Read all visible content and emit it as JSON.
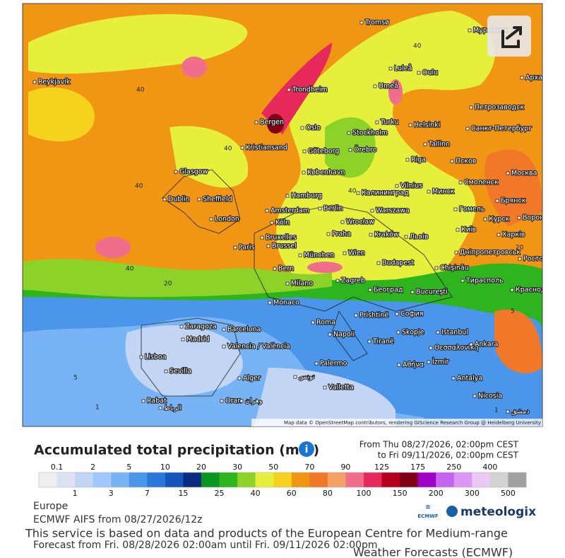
{
  "map": {
    "attribution": "Map data © OpenStreetMap contributors, rendering GIScience Research Group @ Heidelberg University",
    "cities": [
      "Reykjavík",
      "Tromsø",
      "Мурманск",
      "Luleå",
      "Oulu",
      "Архангельск",
      "Trondheim",
      "Umeå",
      "Петрозаводск",
      "Bergen",
      "Oslo",
      "Turku",
      "Helsinki",
      "Санкт-Петербург",
      "Stockholm",
      "Kristiansand",
      "Göteborg",
      "Örebro",
      "Tallinn",
      "Псков",
      "Glasgow",
      "København",
      "Riga",
      "Москва",
      "Смоленск",
      "Vilnius",
      "Минск",
      "Hamburg",
      "Калининград",
      "Dublin",
      "Sheffield",
      "Брянск",
      "Berlin",
      "Amsterdam",
      "Гомель",
      "Warszawa",
      "London",
      "Курск",
      "Воронеж",
      "Köln",
      "Wrocław",
      "Київ",
      "Kraków",
      "Львів",
      "Харків",
      "Praha",
      "Bruxelles",
      "Brussel",
      "Paris",
      "Дніпропетровськ",
      "Ростов",
      "München",
      "Wien",
      "Chişinău",
      "Bern",
      "Budapest",
      "Тирасполь",
      "Milano",
      "Zagreb",
      "Београд",
      "Bucureşti",
      "Краснодар",
      "Monaco",
      "Prishtinë",
      "София",
      "Roma",
      "Skopje",
      "Istanbul",
      "Zaragoza",
      "Barcelona",
      "Napoli",
      "Madrid",
      "Valencia / València",
      "Tiranë",
      "Θεσσαλονίκη",
      "Ankara",
      "Lisboa",
      "Sevilla",
      "İzmir",
      "Αθήνα",
      "Palermo",
      "Antalya",
      "Alger",
      "تونس",
      "Valletta",
      "Nicosia",
      "Rabat",
      "الرباط",
      "Oran",
      "وهران",
      "دمشق"
    ],
    "contour_labels": [
      "40",
      "40",
      "40",
      "40",
      "40",
      "20",
      "5",
      "1",
      "40",
      "20",
      "5",
      "1"
    ]
  },
  "legend": {
    "title": "Accumulated total precipitation (mm)",
    "from": "From Thu 08/27/2026, 02:00pm CEST",
    "to": "to Fri 09/11/2026, 02:00pm CEST",
    "thresholds": [
      0.1,
      1,
      2,
      3,
      5,
      7,
      10,
      15,
      20,
      25,
      30,
      40,
      50,
      60,
      70,
      80,
      90,
      100,
      125,
      150,
      175,
      200,
      250,
      300,
      400,
      500
    ],
    "colors": [
      "#eeeeee",
      "#dde2f2",
      "#c3d5f5",
      "#a0c8fa",
      "#78b4f5",
      "#4b96eb",
      "#2878dc",
      "#1455be",
      "#0a2d82",
      "#0a961e",
      "#2db41e",
      "#8cd228",
      "#e6f03c",
      "#f5d21e",
      "#f09614",
      "#f07828",
      "#f5a064",
      "#f06e8c",
      "#e6285a",
      "#b4001e",
      "#820014",
      "#a000c8",
      "#c864f0",
      "#dc96f5",
      "#ebc8f5",
      "#d2d2d2",
      "#a0a0a0"
    ]
  },
  "footer": {
    "region": "Europe",
    "model": "ECMWF AIFS from 08/27/2026/12z",
    "notice_1": "This service is based on data and products of the European Centre for Medium-range",
    "forecast": "Forecast from Fri. 08/28/2026 02:00am until Fri. 09/11/2026 02:00pm",
    "notice_2": "Weather Forecasts (ECMWF)",
    "logo_ecmwf": "ECMWF",
    "logo_brand": "meteologix"
  }
}
